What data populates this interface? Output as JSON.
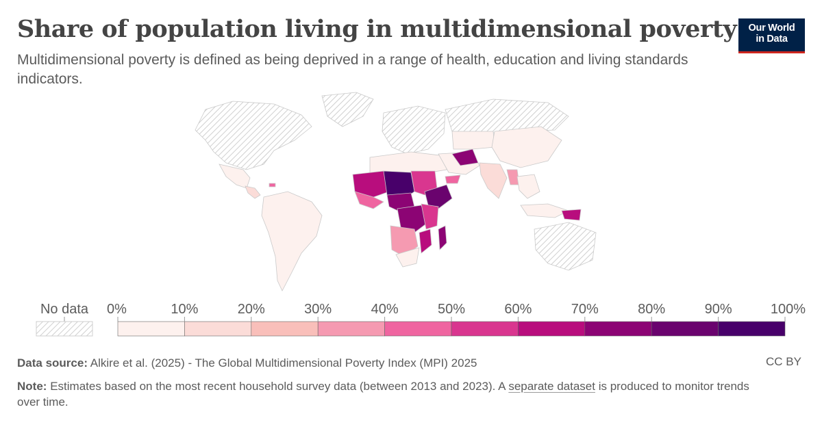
{
  "header": {
    "title": "Share of population living in multidimensional poverty",
    "subtitle": "Multidimensional poverty is defined as being deprived in a range of health, education and living standards indicators."
  },
  "logo": {
    "line1": "Our World",
    "line2": "in Data",
    "bg_color": "#002147",
    "accent_color": "#ce261e"
  },
  "legend": {
    "no_data_label": "No data",
    "ticks": [
      "0%",
      "10%",
      "20%",
      "30%",
      "40%",
      "50%",
      "60%",
      "70%",
      "80%",
      "90%",
      "100%"
    ],
    "colors": [
      "#fdf1ee",
      "#fbdcd8",
      "#f9bfba",
      "#f59ab1",
      "#ef65a0",
      "#d9368f",
      "#b80d7d",
      "#8c0474",
      "#6a036e",
      "#48006a"
    ]
  },
  "footer": {
    "source_label": "Data source:",
    "source_text": "Alkire et al. (2025) - The Global Multidimensional Poverty Index (MPI) 2025",
    "note_label": "Note:",
    "note_text_1": "Estimates based on the most recent household survey data (between 2013 and 2023). A",
    "note_link": "separate dataset",
    "note_text_2": "is produced to monitor trends over time.",
    "license": "CC BY"
  },
  "map_data": {
    "no_data_color": "hatched",
    "regions": [
      {
        "name": "North America",
        "value": null
      },
      {
        "name": "Greenland",
        "value": null
      },
      {
        "name": "Mexico",
        "value": 7
      },
      {
        "name": "Central America",
        "value": 12
      },
      {
        "name": "Haiti",
        "value": 45
      },
      {
        "name": "South America",
        "value": 3
      },
      {
        "name": "Europe",
        "value": null
      },
      {
        "name": "Russia",
        "value": null
      },
      {
        "name": "North Africa",
        "value": 2
      },
      {
        "name": "Sahel West",
        "value": 65
      },
      {
        "name": "Sahel Central",
        "value": 90
      },
      {
        "name": "West Africa Coast",
        "value": 40
      },
      {
        "name": "Sudan",
        "value": 52
      },
      {
        "name": "Ethiopia",
        "value": 85
      },
      {
        "name": "Central Africa",
        "value": 75
      },
      {
        "name": "DR Congo",
        "value": 70
      },
      {
        "name": "East Africa",
        "value": 50
      },
      {
        "name": "Southern Africa",
        "value": 35
      },
      {
        "name": "South Africa",
        "value": 6
      },
      {
        "name": "Mozambique",
        "value": 65
      },
      {
        "name": "Madagascar",
        "value": 70
      },
      {
        "name": "Middle East",
        "value": 3
      },
      {
        "name": "Yemen",
        "value": 45
      },
      {
        "name": "Afghanistan",
        "value": 75
      },
      {
        "name": "Central Asia",
        "value": 2
      },
      {
        "name": "China",
        "value": 4
      },
      {
        "name": "India",
        "value": 18
      },
      {
        "name": "Myanmar",
        "value": 35
      },
      {
        "name": "Southeast Asia",
        "value": 8
      },
      {
        "name": "Indonesia",
        "value": 5
      },
      {
        "name": "Papua New Guinea",
        "value": 60
      },
      {
        "name": "Australia",
        "value": null
      }
    ]
  }
}
